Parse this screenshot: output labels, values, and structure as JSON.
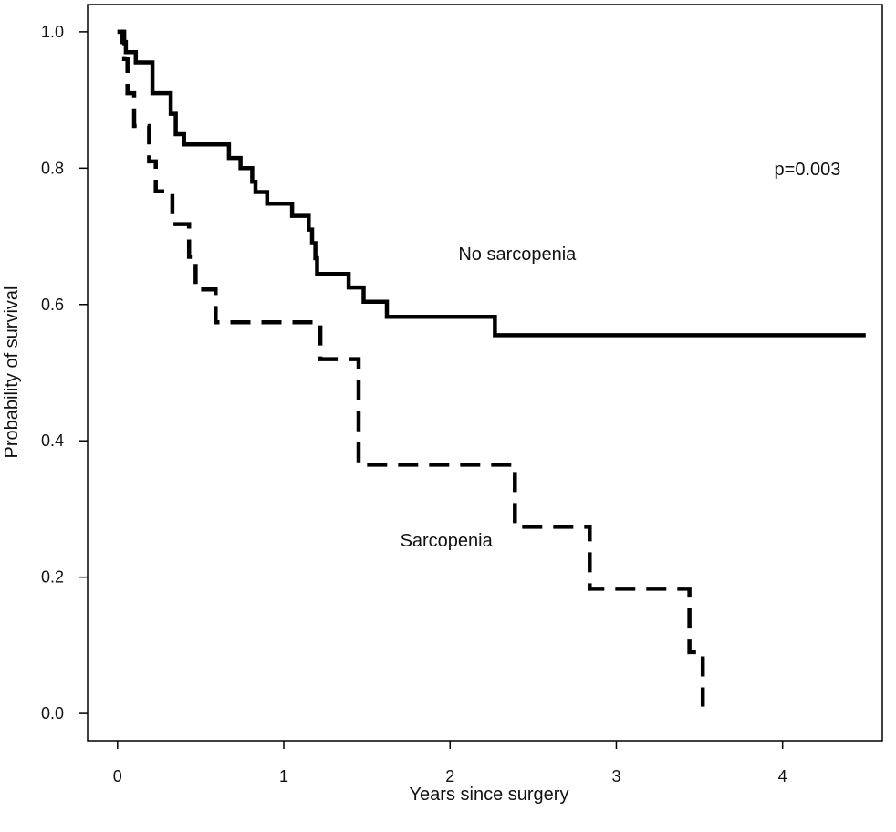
{
  "chart_data": {
    "type": "line",
    "title": "",
    "xlabel": "Years since surgery",
    "ylabel": "Probability of survival",
    "xlim": [
      -0.18,
      4.6
    ],
    "ylim": [
      -0.04,
      1.04
    ],
    "xticks": [
      0,
      1,
      2,
      3,
      4
    ],
    "xtick_labels": [
      "0",
      "1",
      "2",
      "3",
      "4"
    ],
    "yticks": [
      0.0,
      0.2,
      0.4,
      0.6,
      0.8,
      1.0
    ],
    "ytick_labels": [
      "0.0",
      "0.2",
      "0.4",
      "0.6",
      "0.8",
      "1.0"
    ],
    "grid": false,
    "legend": "none",
    "annotations": [
      {
        "id": "pvalue",
        "text": "p=0.003",
        "x": 3.95,
        "y": 0.79
      },
      {
        "id": "label-no-sarcopenia",
        "text": "No sarcopenia",
        "x": 2.05,
        "y": 0.665
      },
      {
        "id": "label-sarcopenia",
        "text": "Sarcopenia",
        "x": 1.7,
        "y": 0.245
      }
    ],
    "series": [
      {
        "name": "No sarcopenia",
        "style": "solid",
        "color": "#000000",
        "steps": [
          [
            0.0,
            1.0
          ],
          [
            0.03,
            0.985
          ],
          [
            0.05,
            0.97
          ],
          [
            0.11,
            0.955
          ],
          [
            0.21,
            0.91
          ],
          [
            0.32,
            0.88
          ],
          [
            0.35,
            0.85
          ],
          [
            0.4,
            0.835
          ],
          [
            0.67,
            0.815
          ],
          [
            0.74,
            0.8
          ],
          [
            0.81,
            0.78
          ],
          [
            0.83,
            0.765
          ],
          [
            0.9,
            0.748
          ],
          [
            1.05,
            0.73
          ],
          [
            1.15,
            0.71
          ],
          [
            1.17,
            0.69
          ],
          [
            1.19,
            0.668
          ],
          [
            1.2,
            0.645
          ],
          [
            1.39,
            0.625
          ],
          [
            1.48,
            0.604
          ],
          [
            1.62,
            0.582
          ],
          [
            2.27,
            0.555
          ],
          [
            4.5,
            0.555
          ]
        ]
      },
      {
        "name": "Sarcopenia",
        "style": "dashed",
        "color": "#000000",
        "steps": [
          [
            0.0,
            1.0
          ],
          [
            0.04,
            0.96
          ],
          [
            0.06,
            0.91
          ],
          [
            0.1,
            0.862
          ],
          [
            0.19,
            0.81
          ],
          [
            0.23,
            0.766
          ],
          [
            0.33,
            0.718
          ],
          [
            0.43,
            0.67
          ],
          [
            0.47,
            0.622
          ],
          [
            0.59,
            0.574
          ],
          [
            1.22,
            0.52
          ],
          [
            1.45,
            0.365
          ],
          [
            2.39,
            0.274
          ],
          [
            2.84,
            0.183
          ],
          [
            3.44,
            0.09
          ],
          [
            3.52,
            0.01
          ]
        ]
      }
    ]
  }
}
